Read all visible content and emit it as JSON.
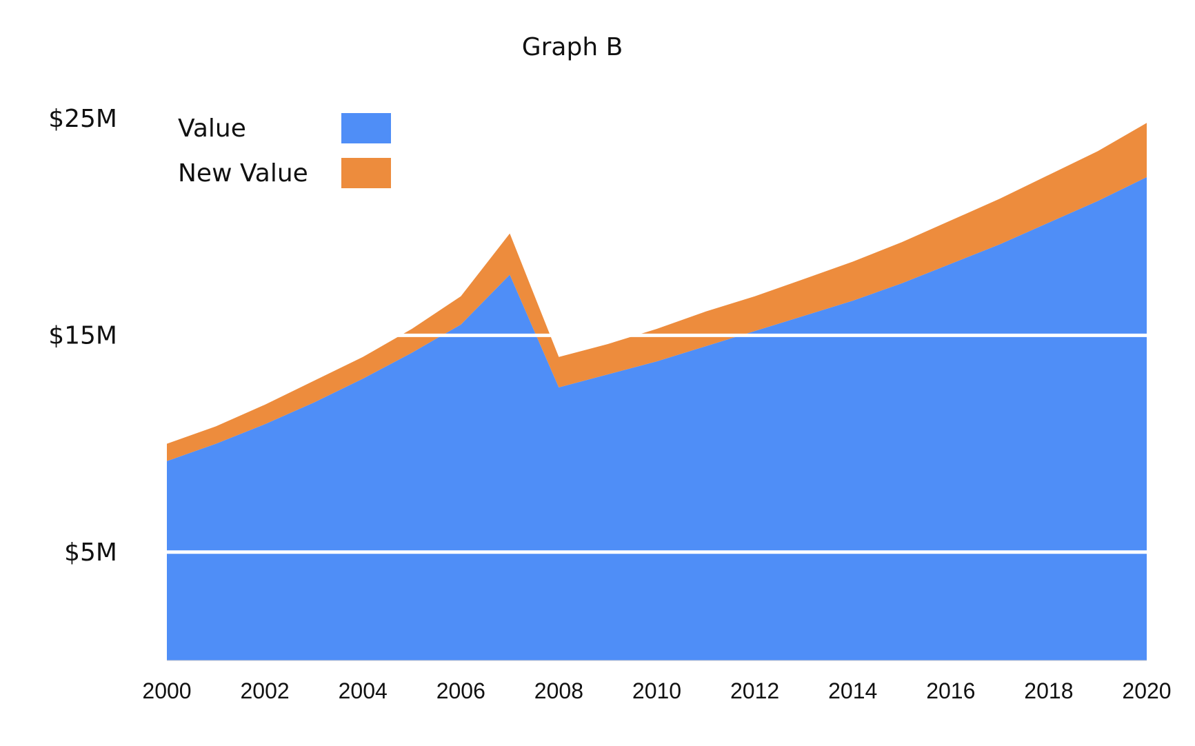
{
  "chart_data": {
    "type": "area",
    "stacked": true,
    "title": "Graph B",
    "xlabel": "",
    "ylabel": "",
    "x_tick_labels": [
      "2000",
      "2002",
      "2004",
      "2006",
      "2008",
      "2010",
      "2012",
      "2014",
      "2016",
      "2018",
      "2020"
    ],
    "y_tick_labels": [
      {
        "value": 5,
        "label": "$5M"
      },
      {
        "value": 15,
        "label": "$15M"
      },
      {
        "value": 25,
        "label": "$25M"
      }
    ],
    "ylim": [
      0,
      25
    ],
    "xlim": [
      2000,
      2020
    ],
    "grid": true,
    "legend_position": "top-left",
    "x": [
      2000,
      2001,
      2002,
      2003,
      2004,
      2005,
      2006,
      2007,
      2008,
      2009,
      2010,
      2011,
      2012,
      2013,
      2014,
      2015,
      2016,
      2017,
      2018,
      2019,
      2020
    ],
    "series": [
      {
        "name": "Value",
        "color": "#4f8ef7",
        "values": [
          9.2,
          10.0,
          10.9,
          11.9,
          13.0,
          14.2,
          15.5,
          17.8,
          12.6,
          13.2,
          13.8,
          14.5,
          15.2,
          15.9,
          16.6,
          17.4,
          18.3,
          19.2,
          20.2,
          21.2,
          22.3
        ]
      },
      {
        "name": "New Value",
        "color": "#ed8c3d",
        "values": [
          0.8,
          0.8,
          0.9,
          1.0,
          1.0,
          1.1,
          1.3,
          1.9,
          1.4,
          1.4,
          1.5,
          1.6,
          1.6,
          1.7,
          1.8,
          1.9,
          2.0,
          2.1,
          2.2,
          2.3,
          2.5
        ]
      }
    ]
  }
}
